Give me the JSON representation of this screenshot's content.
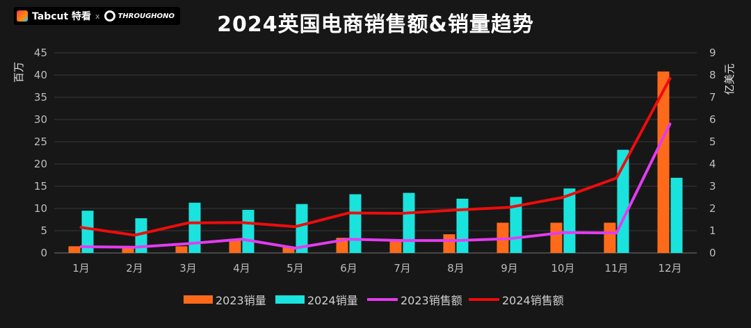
{
  "header": {
    "brand_label": "Tabcut 特看",
    "separator": "x",
    "partner_label": "THROUGHONO"
  },
  "chart_data": {
    "type": "bar",
    "title": "2024英国电商销售额&销量趋势",
    "categories": [
      "1月",
      "2月",
      "3月",
      "4月",
      "5月",
      "6月",
      "7月",
      "8月",
      "9月",
      "10月",
      "11月",
      "12月"
    ],
    "series": [
      {
        "name": "2023销量",
        "kind": "bar",
        "axis": "left",
        "color": "#ff6a1a",
        "values": [
          1.5,
          1.2,
          1.5,
          3.2,
          1.3,
          3.4,
          2.8,
          4.2,
          6.8,
          6.8,
          6.8,
          40.8
        ]
      },
      {
        "name": "2024销量",
        "kind": "bar",
        "axis": "left",
        "color": "#1ae3dd",
        "values": [
          9.5,
          7.8,
          11.3,
          9.7,
          11.0,
          13.2,
          13.5,
          12.2,
          12.6,
          14.5,
          23.2,
          16.9
        ]
      },
      {
        "name": "2023销售额",
        "kind": "line",
        "axis": "right",
        "color": "#e33cf0",
        "values": [
          0.28,
          0.26,
          0.42,
          0.62,
          0.22,
          0.62,
          0.56,
          0.56,
          0.64,
          0.92,
          0.9,
          5.8
        ]
      },
      {
        "name": "2024销售额",
        "kind": "line",
        "axis": "right",
        "color": "#ee0c0c",
        "values": [
          1.15,
          0.8,
          1.35,
          1.37,
          1.18,
          1.8,
          1.78,
          1.93,
          2.05,
          2.5,
          3.37,
          7.85
        ]
      }
    ],
    "ylabel_left": "百万",
    "ylabel_right": "亿美元",
    "ylim_left": [
      0,
      45
    ],
    "ylim_right": [
      0,
      9
    ],
    "yticks_left": [
      "0",
      "5",
      "10",
      "15",
      "20",
      "25",
      "30",
      "35",
      "40",
      "45"
    ],
    "yticks_right": [
      "0",
      "1",
      "2",
      "3",
      "4",
      "5",
      "6",
      "7",
      "8",
      "9"
    ],
    "grid": true,
    "legend_position": "bottom"
  }
}
